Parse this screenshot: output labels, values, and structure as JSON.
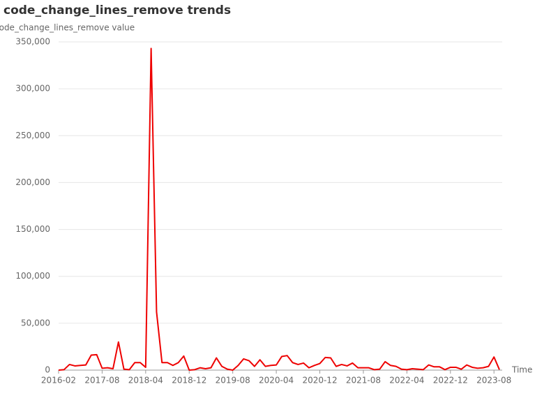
{
  "chart_data": {
    "type": "line",
    "title": "code_change_lines_remove trends",
    "y_label": "code_change_lines_remove value",
    "x_label": "Time",
    "categories": [
      "2016-02",
      null,
      null,
      null,
      null,
      null,
      null,
      null,
      "2017-08",
      null,
      null,
      null,
      null,
      null,
      null,
      null,
      "2018-04",
      null,
      null,
      null,
      null,
      null,
      null,
      null,
      "2018-12",
      null,
      null,
      null,
      null,
      null,
      null,
      null,
      "2019-08",
      null,
      null,
      null,
      null,
      null,
      null,
      null,
      "2020-04",
      null,
      null,
      null,
      null,
      null,
      null,
      null,
      "2020-12",
      null,
      null,
      null,
      null,
      null,
      null,
      null,
      "2021-08",
      null,
      null,
      null,
      null,
      null,
      null,
      null,
      "2022-04",
      null,
      null,
      null,
      null,
      null,
      null,
      null,
      "2022-12",
      null,
      null,
      null,
      null,
      null,
      null,
      null,
      "2023-08",
      null
    ],
    "series": [
      {
        "name": "code_change_lines_remove",
        "color": "#ee0000",
        "values": [
          0,
          500,
          6000,
          4500,
          5000,
          5500,
          16000,
          16500,
          2000,
          2500,
          1500,
          30000,
          1000,
          500,
          8000,
          8000,
          3000,
          343000,
          62000,
          8000,
          8000,
          5000,
          8000,
          15000,
          0,
          500,
          2500,
          1500,
          2500,
          13000,
          4000,
          1000,
          0,
          5000,
          12000,
          10000,
          4000,
          11000,
          4000,
          5000,
          5500,
          14500,
          15500,
          8000,
          6000,
          7500,
          2500,
          5000,
          7000,
          13500,
          13000,
          4000,
          6000,
          4500,
          7500,
          2500,
          2500,
          2500,
          500,
          1000,
          9000,
          5000,
          4000,
          1000,
          500,
          1500,
          1000,
          500,
          5500,
          3500,
          3500,
          500,
          3000,
          3000,
          1000,
          5500,
          3000,
          2000,
          2500,
          4000,
          14000,
          500
        ]
      }
    ],
    "ylim": [
      0,
      350000
    ],
    "yticks": [
      0,
      {
        "value": 50000,
        "label": "50,000"
      },
      {
        "value": 100000,
        "label": "100,000"
      },
      {
        "value": 150000,
        "label": "150,000"
      },
      {
        "value": 200000,
        "label": "200,000"
      },
      {
        "value": 250000,
        "label": "250,000"
      },
      {
        "value": 300000,
        "label": "300,000"
      },
      {
        "value": 350000,
        "label": "350,000"
      }
    ],
    "grid": true
  }
}
